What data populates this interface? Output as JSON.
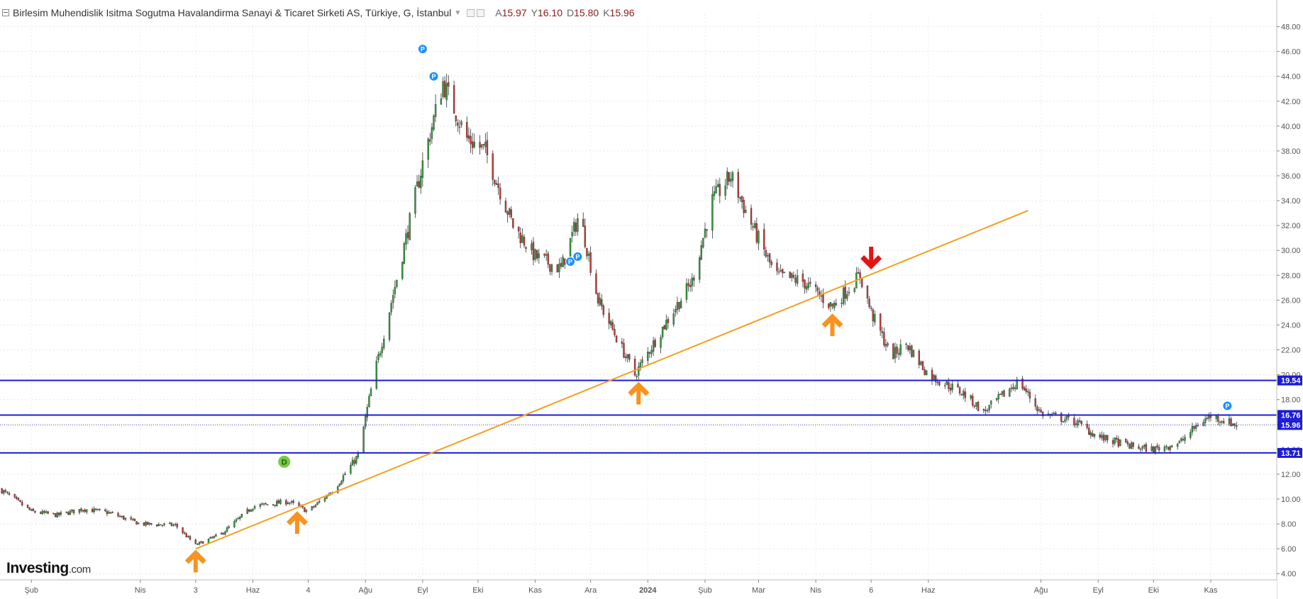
{
  "header": {
    "title": "Birlesim Muhendislik Isitma Sogutma Havalandirma Sanayi & Ticaret Sirketi AS, Türkiye, G, İstanbul",
    "o_label": "A",
    "o_value": "15.97",
    "h_label": "Y",
    "h_value": "16.10",
    "l_label": "D",
    "l_value": "15.80",
    "c_label": "K",
    "c_value": "15.96"
  },
  "logo": {
    "brand": "Investing",
    "suffix": ".com"
  },
  "colors": {
    "up": "#2e9e3a",
    "down": "#c43a3a",
    "trendline": "#f4a024",
    "levels": "#1c1cd8",
    "arrow_up": "#f7931e",
    "arrow_down": "#e41414",
    "event_p": "#1e90ff",
    "event_d": "#7ac943"
  },
  "chart_data": {
    "type": "candlestick",
    "title": "",
    "xlabel": "",
    "ylabel": "",
    "ylim": [
      3.5,
      49
    ],
    "y_ticks": [
      "4.00",
      "6.00",
      "8.00",
      "10.00",
      "12.00",
      "14.00",
      "16.00",
      "18.00",
      "20.00",
      "22.00",
      "24.00",
      "26.00",
      "28.00",
      "30.00",
      "32.00",
      "34.00",
      "36.00",
      "38.00",
      "40.00",
      "42.00",
      "44.00",
      "46.00",
      "48.00"
    ],
    "x_ticks": [
      {
        "label": "Şub",
        "date": "2023-02-01"
      },
      {
        "label": "Nis",
        "date": "2023-04-01"
      },
      {
        "label": "3",
        "date": "2023-05-01"
      },
      {
        "label": "Haz",
        "date": "2023-06-01"
      },
      {
        "label": "4",
        "date": "2023-07-01"
      },
      {
        "label": "Ağu",
        "date": "2023-08-01"
      },
      {
        "label": "Eyl",
        "date": "2023-09-01"
      },
      {
        "label": "Eki",
        "date": "2023-10-01"
      },
      {
        "label": "Kas",
        "date": "2023-11-01"
      },
      {
        "label": "Ara",
        "date": "2023-12-01"
      },
      {
        "label": "2024",
        "date": "2024-01-01"
      },
      {
        "label": "Şub",
        "date": "2024-02-01"
      },
      {
        "label": "Mar",
        "date": "2024-03-01"
      },
      {
        "label": "Nis",
        "date": "2024-04-01"
      },
      {
        "label": "6",
        "date": "2024-05-01"
      },
      {
        "label": "Haz",
        "date": "2024-06-01"
      },
      {
        "label": "Ağu",
        "date": "2024-08-01"
      },
      {
        "label": "Eyl",
        "date": "2024-09-01"
      },
      {
        "label": "Eki",
        "date": "2024-10-01"
      },
      {
        "label": "Kas",
        "date": "2024-11-01"
      }
    ],
    "price_path": [
      {
        "date": "2023-01-15",
        "close": 10.8
      },
      {
        "date": "2023-02-01",
        "close": 9.0
      },
      {
        "date": "2023-02-15",
        "close": 8.7
      },
      {
        "date": "2023-03-01",
        "close": 9.2
      },
      {
        "date": "2023-03-15",
        "close": 8.9
      },
      {
        "date": "2023-04-01",
        "close": 8.0
      },
      {
        "date": "2023-04-20",
        "close": 7.9
      },
      {
        "date": "2023-05-01",
        "close": 6.3
      },
      {
        "date": "2023-05-15",
        "close": 7.2
      },
      {
        "date": "2023-06-01",
        "close": 9.4
      },
      {
        "date": "2023-06-20",
        "close": 9.8
      },
      {
        "date": "2023-07-01",
        "close": 9.0
      },
      {
        "date": "2023-07-15",
        "close": 10.8
      },
      {
        "date": "2023-07-28",
        "close": 13.5
      },
      {
        "date": "2023-08-05",
        "close": 19.5
      },
      {
        "date": "2023-08-20",
        "close": 29.0
      },
      {
        "date": "2023-09-01",
        "close": 37.0
      },
      {
        "date": "2023-09-12",
        "close": 43.5
      },
      {
        "date": "2023-09-25",
        "close": 39.0
      },
      {
        "date": "2023-10-05",
        "close": 38.0
      },
      {
        "date": "2023-10-20",
        "close": 32.0
      },
      {
        "date": "2023-11-01",
        "close": 29.5
      },
      {
        "date": "2023-11-15",
        "close": 28.5
      },
      {
        "date": "2023-11-25",
        "close": 33.0
      },
      {
        "date": "2023-12-05",
        "close": 26.0
      },
      {
        "date": "2023-12-25",
        "close": 20.0
      },
      {
        "date": "2024-01-10",
        "close": 24.0
      },
      {
        "date": "2024-01-25",
        "close": 27.5
      },
      {
        "date": "2024-02-05",
        "close": 34.0
      },
      {
        "date": "2024-02-15",
        "close": 36.0
      },
      {
        "date": "2024-02-25",
        "close": 32.5
      },
      {
        "date": "2024-03-10",
        "close": 28.0
      },
      {
        "date": "2024-03-25",
        "close": 27.5
      },
      {
        "date": "2024-04-10",
        "close": 25.5
      },
      {
        "date": "2024-04-25",
        "close": 28.0
      },
      {
        "date": "2024-05-01",
        "close": 25.0
      },
      {
        "date": "2024-05-12",
        "close": 21.5
      },
      {
        "date": "2024-05-20",
        "close": 22.5
      },
      {
        "date": "2024-06-01",
        "close": 20.0
      },
      {
        "date": "2024-06-20",
        "close": 18.5
      },
      {
        "date": "2024-07-01",
        "close": 17.0
      },
      {
        "date": "2024-07-20",
        "close": 19.5
      },
      {
        "date": "2024-08-01",
        "close": 16.9
      },
      {
        "date": "2024-08-20",
        "close": 16.2
      },
      {
        "date": "2024-09-01",
        "close": 15.0
      },
      {
        "date": "2024-09-20",
        "close": 14.2
      },
      {
        "date": "2024-10-01",
        "close": 14.0
      },
      {
        "date": "2024-10-15",
        "close": 14.5
      },
      {
        "date": "2024-10-25",
        "close": 16.0
      },
      {
        "date": "2024-11-01",
        "close": 16.7
      },
      {
        "date": "2024-11-15",
        "close": 15.96
      }
    ],
    "horizontal_levels": [
      19.54,
      16.76,
      13.71
    ],
    "last_price": 15.96,
    "trendline": {
      "from": {
        "date": "2023-05-01",
        "value": 6.0
      },
      "to": {
        "date": "2024-07-25",
        "value": 33.2
      }
    },
    "arrows": [
      {
        "direction": "up",
        "date": "2023-05-01",
        "value": 4.9
      },
      {
        "direction": "up",
        "date": "2023-06-25",
        "value": 8.0
      },
      {
        "direction": "up",
        "date": "2023-12-27",
        "value": 18.4
      },
      {
        "direction": "up",
        "date": "2024-04-10",
        "value": 23.9
      },
      {
        "direction": "down",
        "date": "2024-05-01",
        "value": 29.5
      }
    ],
    "events": [
      {
        "label": "P",
        "date": "2023-09-01",
        "value": 46.2
      },
      {
        "label": "P",
        "date": "2023-09-07",
        "value": 44.0
      },
      {
        "label": "P",
        "date": "2023-11-20",
        "value": 29.1
      },
      {
        "label": "P",
        "date": "2023-11-24",
        "value": 29.5
      },
      {
        "label": "D",
        "date": "2023-06-18",
        "value": 13.0
      },
      {
        "label": "P",
        "date": "2024-11-10",
        "value": 17.5
      }
    ],
    "grid": true,
    "legend": "none"
  }
}
